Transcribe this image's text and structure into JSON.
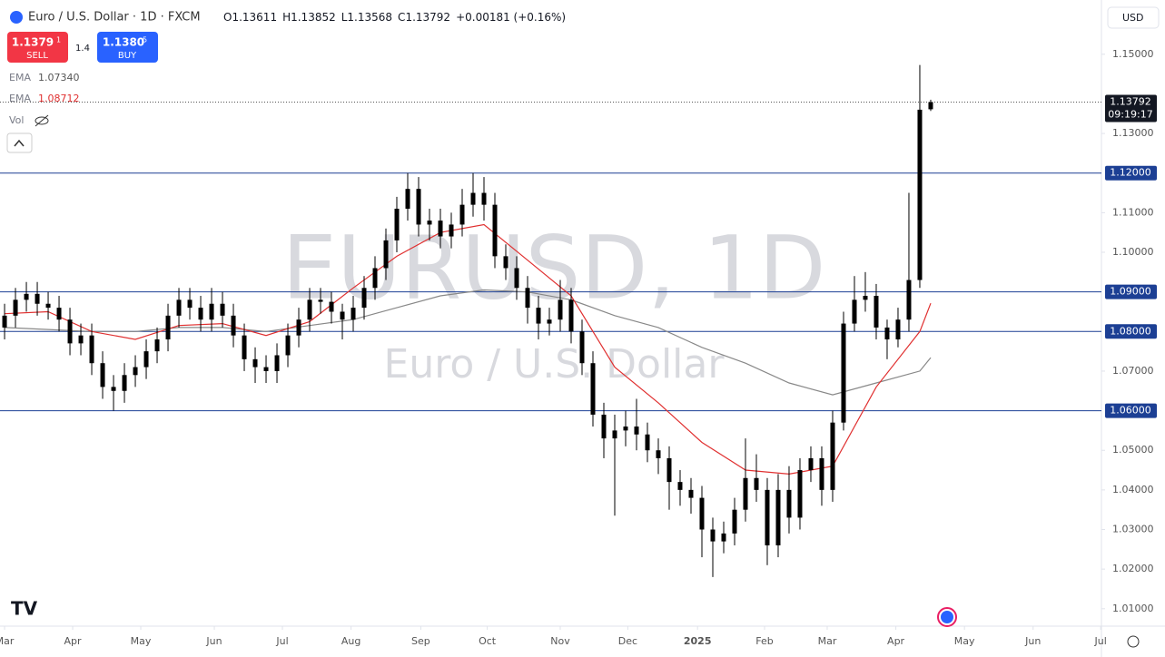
{
  "chart_data": {
    "type": "candlestick",
    "header": {
      "symbol": "Euro / U.S. Dollar · 1D · FXCM",
      "ohlc_labels": [
        "O",
        "H",
        "L",
        "C"
      ],
      "change": "+0.00181 (+0.16%)"
    },
    "trade": {
      "sell_price": "1.1379",
      "sell_sup": "1",
      "sell": "SELL",
      "spread": "1.4",
      "buy_price": "1.1380",
      "buy_sup": "5",
      "buy": "BUY"
    },
    "legend": [
      {
        "name": "EMA",
        "value": "1.07340"
      },
      {
        "name": "EMA",
        "value": "1.08712"
      },
      {
        "name": "Vol"
      }
    ],
    "watermark": {
      "title": "EURUSD, 1D",
      "subtitle": "Euro / U.S. Dollar"
    },
    "currency": "USD",
    "countdown": "09:19:17",
    "candles": {
      "open": [
        1.081,
        1.084,
        1.088,
        1.0895,
        1.087,
        1.086,
        1.083,
        1.077,
        1.079,
        1.072,
        1.066,
        1.065,
        1.069,
        1.071,
        1.075,
        1.078,
        1.084,
        1.088,
        1.086,
        1.083,
        1.087,
        1.084,
        1.079,
        1.073,
        1.071,
        1.07,
        1.074,
        1.079,
        1.083,
        1.088,
        1.0875,
        1.085,
        1.083,
        1.086,
        1.091,
        1.096,
        1.103,
        1.111,
        1.116,
        1.107,
        1.108,
        1.104,
        1.107,
        1.112,
        1.115,
        1.112,
        1.099,
        1.096,
        1.091,
        1.086,
        1.082,
        1.083,
        1.088,
        1.08,
        1.072,
        1.059,
        1.053,
        1.055,
        1.056,
        1.054,
        1.05,
        1.048,
        1.042,
        1.04,
        1.038,
        1.03,
        1.027,
        1.029,
        1.035,
        1.043,
        1.04,
        1.026,
        1.04,
        1.033,
        1.045,
        1.048,
        1.04,
        1.057,
        1.082,
        1.088,
        1.089,
        1.081,
        1.078,
        1.083,
        1.093,
        1.13611
      ],
      "high": [
        1.087,
        1.091,
        1.0925,
        1.0925,
        1.09,
        1.089,
        1.086,
        1.082,
        1.082,
        1.075,
        1.069,
        1.072,
        1.074,
        1.078,
        1.081,
        1.087,
        1.091,
        1.091,
        1.089,
        1.091,
        1.09,
        1.087,
        1.082,
        1.076,
        1.074,
        1.077,
        1.082,
        1.086,
        1.091,
        1.091,
        1.09,
        1.087,
        1.089,
        1.094,
        1.099,
        1.106,
        1.114,
        1.12,
        1.119,
        1.111,
        1.111,
        1.11,
        1.116,
        1.12,
        1.119,
        1.115,
        1.102,
        1.099,
        1.094,
        1.089,
        1.086,
        1.093,
        1.091,
        1.083,
        1.075,
        1.062,
        1.059,
        1.06,
        1.063,
        1.057,
        1.053,
        1.051,
        1.045,
        1.043,
        1.041,
        1.033,
        1.032,
        1.038,
        1.053,
        1.049,
        1.043,
        1.044,
        1.046,
        1.048,
        1.051,
        1.051,
        1.06,
        1.085,
        1.094,
        1.095,
        1.092,
        1.083,
        1.086,
        1.115,
        1.1473,
        1.13852
      ],
      "low": [
        1.078,
        1.081,
        1.085,
        1.084,
        1.083,
        1.08,
        1.074,
        1.074,
        1.069,
        1.063,
        1.06,
        1.062,
        1.066,
        1.068,
        1.072,
        1.075,
        1.081,
        1.083,
        1.08,
        1.08,
        1.081,
        1.076,
        1.07,
        1.067,
        1.067,
        1.067,
        1.071,
        1.076,
        1.08,
        1.0845,
        1.082,
        1.078,
        1.08,
        1.083,
        1.088,
        1.093,
        1.1,
        1.108,
        1.104,
        1.103,
        1.101,
        1.101,
        1.104,
        1.109,
        1.108,
        1.096,
        1.093,
        1.088,
        1.082,
        1.078,
        1.079,
        1.08,
        1.077,
        1.069,
        1.056,
        1.048,
        1.0335,
        1.051,
        1.05,
        1.047,
        1.044,
        1.035,
        1.036,
        1.034,
        1.023,
        1.018,
        1.024,
        1.026,
        1.032,
        1.037,
        1.021,
        1.023,
        1.029,
        1.03,
        1.042,
        1.036,
        1.037,
        1.055,
        1.08,
        1.085,
        1.078,
        1.073,
        1.076,
        1.08,
        1.091,
        1.13568
      ],
      "close": [
        1.084,
        1.088,
        1.0895,
        1.087,
        1.086,
        1.083,
        1.077,
        1.079,
        1.072,
        1.066,
        1.065,
        1.069,
        1.071,
        1.075,
        1.078,
        1.084,
        1.088,
        1.086,
        1.083,
        1.087,
        1.084,
        1.079,
        1.073,
        1.071,
        1.07,
        1.074,
        1.079,
        1.083,
        1.088,
        1.0875,
        1.085,
        1.083,
        1.086,
        1.091,
        1.096,
        1.103,
        1.111,
        1.116,
        1.107,
        1.108,
        1.104,
        1.107,
        1.112,
        1.115,
        1.112,
        1.099,
        1.096,
        1.091,
        1.086,
        1.082,
        1.083,
        1.088,
        1.08,
        1.072,
        1.059,
        1.053,
        1.055,
        1.056,
        1.054,
        1.05,
        1.048,
        1.042,
        1.04,
        1.038,
        1.03,
        1.027,
        1.029,
        1.035,
        1.043,
        1.04,
        1.026,
        1.04,
        1.033,
        1.045,
        1.048,
        1.04,
        1.057,
        1.082,
        1.088,
        1.089,
        1.081,
        1.078,
        1.083,
        1.093,
        1.136,
        1.13792
      ],
      "color": "#000000"
    },
    "lines": [
      {
        "name": "EMA",
        "color": "#888888",
        "x": [
          0,
          4,
          8,
          12,
          16,
          20,
          24,
          28,
          32,
          36,
          40,
          44,
          48,
          52,
          56,
          60,
          64,
          68,
          72,
          76,
          80,
          84,
          85
        ],
        "values": [
          1.081,
          1.0805,
          1.08,
          1.08,
          1.081,
          1.081,
          1.08,
          1.0815,
          1.083,
          1.086,
          1.089,
          1.0905,
          1.09,
          1.088,
          1.084,
          1.081,
          1.076,
          1.072,
          1.067,
          1.064,
          1.067,
          1.07,
          1.0734
        ]
      },
      {
        "name": "EMA",
        "color": "#e03030",
        "x": [
          0,
          4,
          8,
          12,
          16,
          20,
          24,
          28,
          32,
          36,
          40,
          44,
          48,
          52,
          56,
          60,
          64,
          68,
          72,
          76,
          80,
          84,
          85
        ],
        "values": [
          1.0845,
          1.085,
          1.08,
          1.078,
          1.0815,
          1.082,
          1.079,
          1.0825,
          1.091,
          1.099,
          1.105,
          1.107,
          1.098,
          1.089,
          1.071,
          1.062,
          1.052,
          1.045,
          1.044,
          1.046,
          1.066,
          1.08,
          1.08712
        ]
      }
    ],
    "levels": [
      {
        "value": 1.12,
        "label": "1.12000"
      },
      {
        "value": 1.09,
        "label": "1.09000"
      },
      {
        "value": 1.08,
        "label": "1.08000"
      },
      {
        "value": 1.06,
        "label": "1.06000"
      }
    ],
    "level_color": "#1c3f94",
    "xlim": [
      -0.42,
      100.67
    ],
    "ylim": [
      1.0056,
      1.1637
    ],
    "yticks": [
      {
        "value": 1.01,
        "label": "1.01000"
      },
      {
        "value": 1.02,
        "label": "1.02000"
      },
      {
        "value": 1.03,
        "label": "1.03000"
      },
      {
        "value": 1.04,
        "label": "1.04000"
      },
      {
        "value": 1.05,
        "label": "1.05000"
      },
      {
        "value": 1.07,
        "label": "1.07000"
      },
      {
        "value": 1.1,
        "label": "1.10000"
      },
      {
        "value": 1.11,
        "label": "1.11000"
      },
      {
        "value": 1.13,
        "label": "1.13000"
      },
      {
        "value": 1.15,
        "label": "1.15000"
      }
    ],
    "xticks": [
      {
        "value": 0,
        "label": "Mar"
      },
      {
        "value": 6.25,
        "label": "Apr"
      },
      {
        "value": 12.5,
        "label": "May"
      },
      {
        "value": 19.25,
        "label": "Jun"
      },
      {
        "value": 25.5,
        "label": "Jul"
      },
      {
        "value": 31.8,
        "label": "Aug"
      },
      {
        "value": 38.2,
        "label": "Sep"
      },
      {
        "value": 44.3,
        "label": "Oct"
      },
      {
        "value": 51,
        "label": "Nov"
      },
      {
        "value": 57.2,
        "label": "Dec"
      },
      {
        "value": 63.6,
        "label": "2025"
      },
      {
        "value": 69.75,
        "label": "Feb"
      },
      {
        "value": 75.5,
        "label": "Mar"
      },
      {
        "value": 81.8,
        "label": "Apr"
      },
      {
        "value": 88.1,
        "label": "May"
      },
      {
        "value": 94.4,
        "label": "Jun"
      },
      {
        "value": 100.6,
        "label": "Jul"
      }
    ]
  }
}
